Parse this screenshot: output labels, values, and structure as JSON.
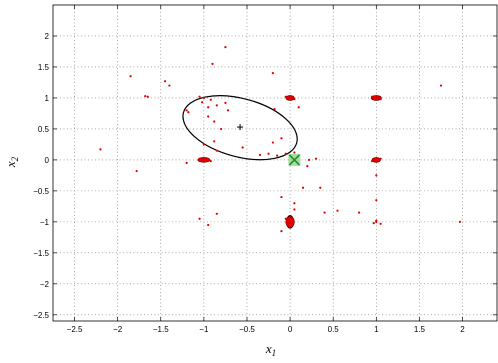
{
  "chart_data": {
    "type": "scatter",
    "xlabel": "x",
    "xlabel_sub": "1",
    "ylabel": "x",
    "ylabel_sub": "2",
    "xlim": [
      -2.75,
      2.4
    ],
    "ylim": [
      -2.6,
      2.5
    ],
    "grid": true,
    "xticks": [
      -2.5,
      -2,
      -1.5,
      -1,
      -0.5,
      0,
      0.5,
      1,
      1.5,
      2
    ],
    "yticks": [
      -2.5,
      -2,
      -1.5,
      -1,
      -0.5,
      0,
      0.5,
      1,
      1.5,
      2
    ],
    "xtick_labels": [
      "−2.5",
      "−2",
      "−1.5",
      "−1",
      "−0.5",
      "0",
      "0.5",
      "1",
      "1.5",
      "2"
    ],
    "ytick_labels": [
      "−2.5",
      "−2",
      "−1.5",
      "−1",
      "−0.5",
      "0",
      "0.5",
      "1",
      "1.5",
      "2"
    ],
    "samples_color": "#e00000",
    "samples": [
      [
        -0.75,
        1.82
      ],
      [
        -0.9,
        1.55
      ],
      [
        -1.85,
        1.35
      ],
      [
        -1.45,
        1.27
      ],
      [
        -1.4,
        1.2
      ],
      [
        -1.65,
        1.02
      ],
      [
        -1.68,
        1.03
      ],
      [
        -1.05,
        1.02
      ],
      [
        -1.0,
        1.0
      ],
      [
        -0.92,
        0.97
      ],
      [
        -1.02,
        0.93
      ],
      [
        -0.75,
        0.92
      ],
      [
        -0.85,
        0.88
      ],
      [
        -0.95,
        0.85
      ],
      [
        -0.72,
        0.8
      ],
      [
        -0.95,
        0.7
      ],
      [
        -0.88,
        0.62
      ],
      [
        -1.2,
        0.8
      ],
      [
        -1.18,
        0.77
      ],
      [
        -0.2,
        1.4
      ],
      [
        -0.8,
        0.5
      ],
      [
        -0.88,
        0.3
      ],
      [
        -1.0,
        0.25
      ],
      [
        -0.55,
        0.2
      ],
      [
        -0.85,
        0.15
      ],
      [
        -0.1,
        0.35
      ],
      [
        -0.2,
        0.28
      ],
      [
        -0.25,
        0.1
      ],
      [
        -0.15,
        0.07
      ],
      [
        -0.05,
        0.1
      ],
      [
        -0.35,
        0.08
      ],
      [
        0.05,
        0.12
      ],
      [
        -0.18,
        0.82
      ],
      [
        0.1,
        0.85
      ],
      [
        0.22,
        0.0
      ],
      [
        0.3,
        0.02
      ],
      [
        0.2,
        -0.1
      ],
      [
        0.35,
        -0.45
      ],
      [
        0.15,
        -0.45
      ],
      [
        0.05,
        -0.7
      ],
      [
        -0.1,
        -0.6
      ],
      [
        0.05,
        -0.8
      ],
      [
        0.4,
        -0.85
      ],
      [
        -0.1,
        -1.15
      ],
      [
        -0.05,
        -0.95
      ],
      [
        0.0,
        -1.05
      ],
      [
        0.0,
        -1.08
      ],
      [
        -1.05,
        -0.95
      ],
      [
        -0.95,
        -1.05
      ],
      [
        -0.85,
        -0.87
      ],
      [
        -1.0,
        0.0
      ],
      [
        -1.05,
        0.02
      ],
      [
        -0.92,
        -0.02
      ],
      [
        -1.2,
        -0.05
      ],
      [
        -1.78,
        -0.18
      ],
      [
        -2.2,
        0.17
      ],
      [
        0.0,
        1.0
      ],
      [
        0.05,
        0.98
      ],
      [
        -0.05,
        1.02
      ],
      [
        1.0,
        1.0
      ],
      [
        0.95,
        1.02
      ],
      [
        1.05,
        0.98
      ],
      [
        1.0,
        0.0
      ],
      [
        1.05,
        0.02
      ],
      [
        0.95,
        -0.02
      ],
      [
        0.97,
        0.0
      ],
      [
        1.0,
        -0.25
      ],
      [
        1.0,
        -0.65
      ],
      [
        0.8,
        -0.85
      ],
      [
        1.0,
        -1.0
      ],
      [
        0.97,
        -1.02
      ],
      [
        1.0,
        -0.98
      ],
      [
        1.75,
        1.2
      ],
      [
        1.97,
        -1.0
      ],
      [
        0.55,
        -0.82
      ],
      [
        1.05,
        -1.03
      ]
    ],
    "particle_clusters": [
      {
        "x": 0.0,
        "y": 1.0,
        "rx": 0.05,
        "ry": 0.04
      },
      {
        "x": -1.0,
        "y": 0.0,
        "rx": 0.07,
        "ry": 0.04
      },
      {
        "x": 1.0,
        "y": 0.0,
        "rx": 0.05,
        "ry": 0.04
      },
      {
        "x": 1.0,
        "y": 1.0,
        "rx": 0.06,
        "ry": 0.04
      },
      {
        "x": 0.0,
        "y": -1.0,
        "rx": 0.05,
        "ry": 0.09
      }
    ],
    "ellipses": [
      {
        "cx": -0.58,
        "cy": 0.52,
        "rx": 0.68,
        "ry": 0.47,
        "angle_deg": -15
      },
      {
        "cx": 1.0,
        "cy": 1.0,
        "rx": 0.05,
        "ry": 0.03,
        "angle_deg": 0
      },
      {
        "cx": 0.0,
        "cy": -1.0,
        "rx": 0.04,
        "ry": 0.1,
        "angle_deg": 0
      },
      {
        "cx": 0.0,
        "cy": -1.0,
        "rx": 0.02,
        "ry": 0.06,
        "angle_deg": 0
      },
      {
        "cx": 0.0,
        "cy": 1.0,
        "rx": 0.04,
        "ry": 0.03,
        "angle_deg": 0
      },
      {
        "cx": -1.0,
        "cy": 0.0,
        "rx": 0.05,
        "ry": 0.03,
        "angle_deg": 0
      },
      {
        "cx": 1.0,
        "cy": 0.0,
        "rx": 0.04,
        "ry": 0.03,
        "angle_deg": 0
      }
    ],
    "means": [
      {
        "x": -0.58,
        "y": 0.53,
        "marker": "plus"
      }
    ],
    "highlight": {
      "x": 0.05,
      "y": 0.0,
      "marker": "x",
      "fill": "#90d890",
      "stroke": "#2a8a2a"
    }
  }
}
